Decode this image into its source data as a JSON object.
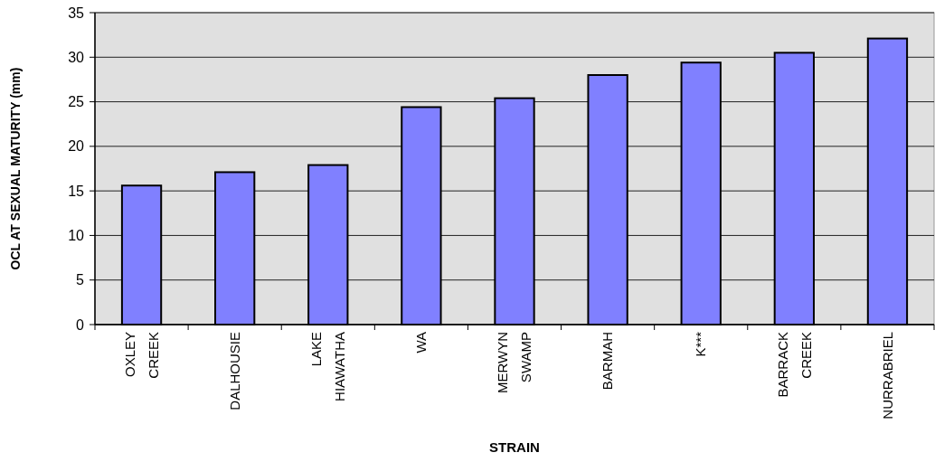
{
  "chart_data": {
    "type": "bar",
    "xlabel": "STRAIN",
    "ylabel": "OCL AT SEXUAL MATURITY (mm)",
    "categories": [
      "OXLEY CREEK",
      "DALHOUSIE",
      "LAKE HIAWATHA",
      "WA",
      "MERWYN SWAMP",
      "BARMAH",
      "K***",
      "BARRACK CREEK",
      "NURRABRIEL"
    ],
    "values": [
      15.6,
      17.1,
      17.9,
      24.4,
      25.4,
      28.0,
      29.4,
      30.5,
      32.1
    ],
    "color": "#8080ff",
    "ylim": [
      0,
      35
    ],
    "yticks": [
      0,
      5,
      10,
      15,
      20,
      25,
      30,
      35
    ],
    "grid": "y"
  }
}
